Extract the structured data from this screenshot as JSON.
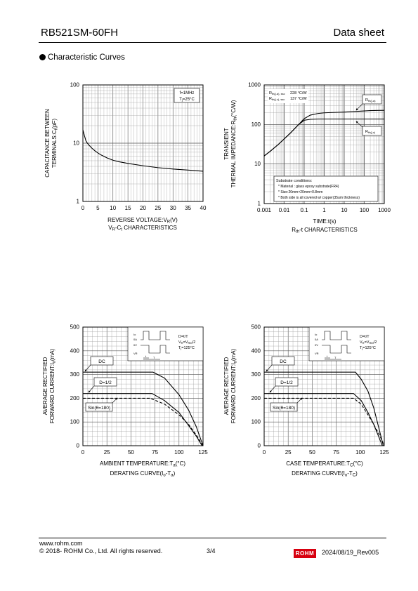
{
  "header": {
    "part_number": "RB521SM-60FH",
    "doc_type": "Data sheet"
  },
  "section_title": "Characteristic Curves",
  "charts": {
    "vr_ct": {
      "ylabel_1": "CAPACITANCE BETWEEN",
      "ylabel_2": "TERMINALS:C",
      "ylabel_sub": "t",
      "ylabel_unit": "(pF)",
      "xlabel_main": "REVERSE VOLTAGE:V",
      "xlabel_sub": "R",
      "xlabel_unit": "(V)",
      "caption_main": "V",
      "caption_sub1": "R",
      "caption_mid": "-C",
      "caption_sub2": "t",
      "caption_tail": " CHARACTERISTICS",
      "cond_1": "f=1MHz",
      "cond_2_main": "T",
      "cond_2_sub": "j",
      "cond_2_tail": "=25°C",
      "yticks": [
        "1",
        "10",
        "100"
      ],
      "xticks": [
        "0",
        "5",
        "10",
        "15",
        "20",
        "25",
        "30",
        "35",
        "40"
      ]
    },
    "rth_t": {
      "ylabel_1": "TRANSIENT",
      "ylabel_2": "THERMAL IMPEDANCE:R",
      "ylabel_sub": "th",
      "ylabel_unit": "(°C/W)",
      "xlabel": "TIME:t(s)",
      "caption_main": "R",
      "caption_sub": "th",
      "caption_tail": "-t CHARACTERISTICS",
      "legend_1_label": "R",
      "legend_1_sub": "th(j-a), ssc",
      "legend_1_value": "228 °C/W",
      "legend_2_label": "R",
      "legend_2_sub": "th(j-c), ssc",
      "legend_2_value": "137 °C/W",
      "tag_1_main": "R",
      "tag_1_sub": "th(j-a)",
      "tag_2_main": "R",
      "tag_2_sub": "th(j-c)",
      "substrate_title": "Substrate conditions:",
      "substrate_1": "* Material : glass epoxy substrate(FR4)",
      "substrate_2": "* Size:20mm×20mm×0.8mm",
      "substrate_3": "* Both side is all covered w/ copper(35um thickness)",
      "yticks": [
        "1",
        "10",
        "100",
        "1000"
      ],
      "xticks": [
        "0.001",
        "0.01",
        "0.1",
        "1",
        "10",
        "100",
        "1000"
      ]
    },
    "derate_ta": {
      "ylabel_1": "AVERAGE RECTIFIED",
      "ylabel_2": "FORWARD CURRENT:I",
      "ylabel_sub": "o",
      "ylabel_unit": "(mA)",
      "xlabel_main": "AMBIENT TEMPERATURE:T",
      "xlabel_sub": "a",
      "xlabel_unit": "(°C)",
      "caption_main": "DERATING CURVE(I",
      "caption_sub1": "o",
      "caption_mid": "-T",
      "caption_sub2": "a",
      "caption_tail": ")",
      "tag_dc": "DC",
      "tag_d": "D=1/2",
      "tag_sin": "Sin(θ=180)",
      "cond_1": "D=t/T",
      "cond_2_main": "V",
      "cond_2_sub": "R",
      "cond_2_tail": "=V",
      "cond_2_sub2": "RM",
      "cond_2_tail2": "/2",
      "cond_3_main": "T",
      "cond_3_sub": "j",
      "cond_3_tail": "=125°C",
      "wave_io": "Io",
      "wave_0a": "0A",
      "wave_0v": "0V",
      "wave_vr": "VR",
      "wave_t": "t",
      "wave_T": "T",
      "yticks": [
        "0",
        "100",
        "200",
        "300",
        "400",
        "500"
      ],
      "xticks": [
        "0",
        "25",
        "50",
        "75",
        "100",
        "125"
      ]
    },
    "derate_tc": {
      "ylabel_1": "AVERAGE RECTIFIED",
      "ylabel_2": "FORWARD CURRENT:I",
      "ylabel_sub": "o",
      "ylabel_unit": "(mA)",
      "xlabel_main": "CASE TEMPERATURE:T",
      "xlabel_sub": "C",
      "xlabel_unit": "(°C)",
      "caption_main": "DERATING CURVE(I",
      "caption_sub1": "o",
      "caption_mid": "-T",
      "caption_sub2": "C",
      "caption_tail": ")",
      "tag_dc": "DC",
      "tag_d": "D=1/2",
      "tag_sin": "Sin(θ=180)",
      "cond_1": "D=t/T",
      "cond_2_main": "V",
      "cond_2_sub": "R",
      "cond_2_tail": "=V",
      "cond_2_sub2": "RM",
      "cond_2_tail2": "/2",
      "cond_3_main": "T",
      "cond_3_sub": "j",
      "cond_3_tail": "=125°C",
      "wave_io": "Io",
      "wave_0a": "0A",
      "wave_0v": "0V",
      "wave_vr": "VR",
      "wave_t": "t",
      "wave_T": "T",
      "yticks": [
        "0",
        "100",
        "200",
        "300",
        "400",
        "500"
      ],
      "xticks": [
        "0",
        "25",
        "50",
        "75",
        "100",
        "125"
      ]
    }
  },
  "chart_data": [
    {
      "type": "line",
      "xlim": [
        0,
        40
      ],
      "ylim": [
        1,
        100
      ],
      "yscale": "log",
      "grid": true,
      "series": [
        {
          "x": [
            0,
            0.5,
            1,
            1.5,
            2,
            3,
            4,
            5,
            6,
            8,
            10,
            12,
            15,
            20,
            25,
            30,
            35,
            40
          ],
          "y": [
            17,
            13.5,
            11,
            10,
            9.3,
            8.2,
            7.4,
            6.8,
            6.3,
            5.6,
            5.1,
            4.8,
            4.5,
            4.1,
            3.8,
            3.6,
            3.45,
            3.3
          ]
        }
      ]
    },
    {
      "type": "line",
      "xlim": [
        0.001,
        1000
      ],
      "ylim": [
        1,
        1000
      ],
      "xscale": "log",
      "yscale": "log",
      "grid": true,
      "series": [
        {
          "name": "Rth(j-a)",
          "x": [
            0.001,
            0.002,
            0.005,
            0.01,
            0.02,
            0.05,
            0.1,
            0.2,
            0.5,
            1,
            2,
            5,
            10,
            20,
            50,
            100,
            200,
            500,
            1000
          ],
          "y": [
            16,
            21,
            31,
            43,
            60,
            97,
            140,
            172,
            190,
            197,
            200,
            203,
            206,
            210,
            215,
            220,
            224,
            227,
            228
          ]
        },
        {
          "name": "Rth(j-c)",
          "x": [
            0.001,
            0.002,
            0.005,
            0.01,
            0.02,
            0.05,
            0.1,
            0.2,
            0.5,
            1,
            10,
            100,
            1000
          ],
          "y": [
            16,
            21,
            31,
            43,
            60,
            97,
            128,
            135,
            137,
            137,
            137,
            137,
            137
          ]
        }
      ]
    },
    {
      "type": "line",
      "xlim": [
        0,
        125
      ],
      "ylim": [
        0,
        500
      ],
      "grid": true,
      "series": [
        {
          "name": "DC",
          "x": [
            0,
            73,
            85,
            100,
            110,
            118,
            125
          ],
          "y": [
            310,
            310,
            285,
            215,
            150,
            80,
            0
          ]
        },
        {
          "name": "D=1/2",
          "x": [
            0,
            72,
            85,
            100,
            110,
            118,
            124
          ],
          "y": [
            220,
            220,
            190,
            140,
            85,
            40,
            0
          ]
        },
        {
          "name": "Sin(θ=180)",
          "x": [
            0,
            70,
            85,
            100,
            110,
            118,
            125
          ],
          "y": [
            200,
            200,
            175,
            130,
            90,
            45,
            0
          ],
          "dashed": true
        }
      ]
    },
    {
      "type": "line",
      "xlim": [
        0,
        125
      ],
      "ylim": [
        0,
        500
      ],
      "grid": true,
      "series": [
        {
          "name": "DC",
          "x": [
            0,
            95,
            101,
            108,
            114,
            119,
            124
          ],
          "y": [
            310,
            310,
            280,
            230,
            160,
            80,
            0
          ]
        },
        {
          "name": "D=1/2",
          "x": [
            0,
            93,
            101,
            108,
            114,
            119,
            123
          ],
          "y": [
            220,
            220,
            190,
            140,
            90,
            40,
            0
          ]
        },
        {
          "name": "Sin(θ=180)",
          "x": [
            0,
            93,
            101,
            108,
            114,
            120,
            125
          ],
          "y": [
            200,
            200,
            175,
            130,
            90,
            45,
            0
          ],
          "dashed": true
        }
      ]
    }
  ],
  "footer": {
    "url": "www.rohm.com",
    "copyright": "© 2018- ROHM Co., Ltd. All rights reserved.",
    "page": "3/4",
    "logo_text": "ROHM",
    "revision": "2024/08/19_Rev005"
  }
}
